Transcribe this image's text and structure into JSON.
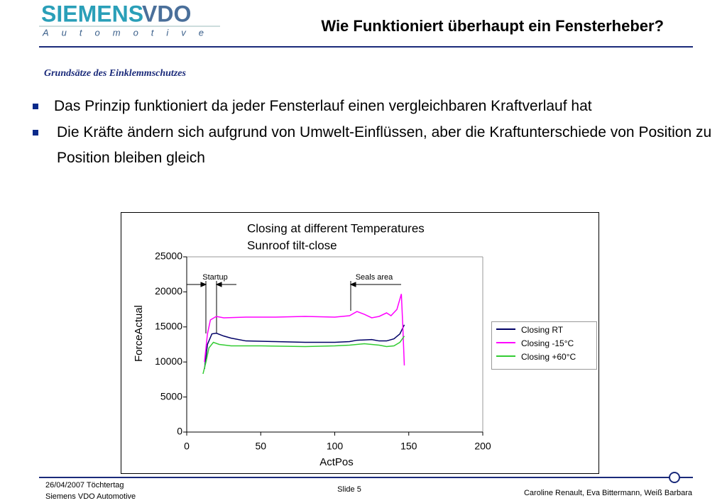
{
  "header": {
    "logo": [
      "SIEMENS",
      "VDO"
    ],
    "logo_sub": "Automotive",
    "title": "Wie Funktioniert überhaupt ein Fensterheber?"
  },
  "subtitle": "Grundsätze des Einklemmschutzes",
  "bullets": [
    "Das Prinzip funktioniert da jeder Fensterlauf einen vergleichbaren Kraftverlauf hat",
    "Die Kräfte ändern sich aufgrund von Umwelt-Einflüssen, aber die Kraftunterschiede von Position zu Position bleiben gleich"
  ],
  "chart_data": {
    "type": "line",
    "title": [
      "Closing at different Temperatures",
      "Sunroof tilt-close"
    ],
    "x_label": "ActPos",
    "y_label": "ForceActual",
    "annotations": [
      "Startup",
      "Seals area"
    ],
    "xlim": [
      0,
      200
    ],
    "xticks": [
      0,
      50,
      100,
      150,
      200
    ],
    "ylim": [
      0,
      25000
    ],
    "yticks": [
      0,
      5000,
      10000,
      15000,
      20000,
      25000
    ],
    "grid": false,
    "series": [
      {
        "name": "Closing RT",
        "color": "#000066",
        "x": [
          12,
          14,
          17,
          20,
          25,
          30,
          40,
          60,
          80,
          100,
          110,
          115,
          125,
          130,
          135,
          140,
          144,
          147
        ],
        "values": [
          9000,
          12500,
          14000,
          14100,
          13700,
          13400,
          13000,
          12900,
          12800,
          12800,
          12900,
          13100,
          13200,
          13000,
          13000,
          13300,
          14000,
          15300
        ]
      },
      {
        "name": "Closing -15°C",
        "color": "#ff00ff",
        "x": [
          12,
          14,
          16,
          20,
          25,
          40,
          60,
          80,
          100,
          110,
          115,
          120,
          125,
          130,
          135,
          138,
          142,
          145,
          146,
          147
        ],
        "values": [
          10000,
          14000,
          16000,
          16500,
          16300,
          16400,
          16400,
          16500,
          16400,
          16600,
          17200,
          16800,
          16300,
          16500,
          17000,
          16600,
          17500,
          19700,
          15000,
          9500
        ]
      },
      {
        "name": "Closing +60°C",
        "color": "#33cc33",
        "x": [
          11,
          13,
          15,
          18,
          22,
          30,
          50,
          80,
          100,
          110,
          120,
          130,
          135,
          140,
          144,
          147
        ],
        "values": [
          8300,
          10000,
          12000,
          12800,
          12500,
          12300,
          12300,
          12200,
          12300,
          12400,
          12600,
          12400,
          12200,
          12300,
          12800,
          13700
        ]
      }
    ]
  },
  "footer": {
    "date": "26/04/2007  Töchtertag",
    "company": "Siemens VDO Automotive",
    "slide": "Slide 5",
    "authors": "Caroline Renault, Eva Bittermann, Weiß Barbara"
  }
}
